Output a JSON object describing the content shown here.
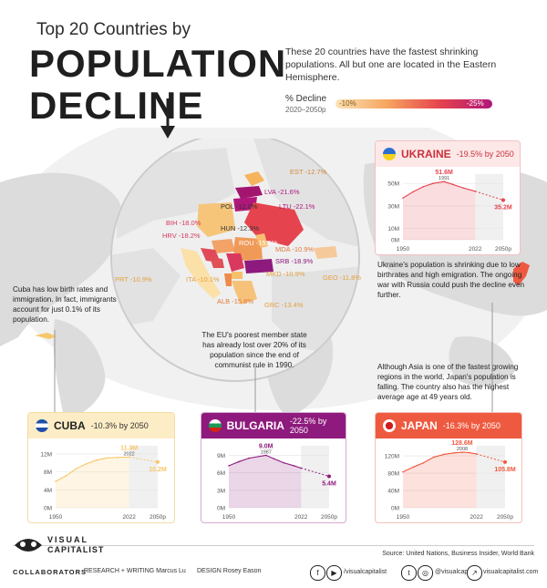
{
  "header": {
    "title_top": "Top 20 Countries by",
    "title_line1": "POPULATION",
    "title_line2": "DECLINE",
    "intro": "These 20 countries have the fastest shrinking populations. All but one are located in the Eastern Hemisphere."
  },
  "legend": {
    "title": "% Decline",
    "period": "2020–2050p",
    "low": "-10%",
    "high": "-25%"
  },
  "colors": {
    "ukraine": "#e5434d",
    "cuba": "#f7c76b",
    "bulgaria": "#8e1a7d",
    "japan": "#ee5a40"
  },
  "map_labels": [
    {
      "name": "EST",
      "value": "-12.7%"
    },
    {
      "name": "LVA",
      "value": "-21.6%"
    },
    {
      "name": "LTU",
      "value": "-22.1%"
    },
    {
      "name": "POL",
      "value": "-12.0%"
    },
    {
      "name": "BIH",
      "value": "-18.0%"
    },
    {
      "name": "HUN",
      "value": "-12.3%"
    },
    {
      "name": "HRV",
      "value": "-18.2%"
    },
    {
      "name": "ROU",
      "value": "-15.5%"
    },
    {
      "name": "MDA",
      "value": "-10.9%"
    },
    {
      "name": "SRB",
      "value": "-18.9%"
    },
    {
      "name": "PRT",
      "value": "-10.9%"
    },
    {
      "name": "ITA",
      "value": "-10.1%"
    },
    {
      "name": "MKD",
      "value": "-10.9%"
    },
    {
      "name": "GEO",
      "value": "-11.8%"
    },
    {
      "name": "ALB",
      "value": "-15.8%"
    },
    {
      "name": "GRC",
      "value": "-13.4%"
    }
  ],
  "annotations": {
    "ukraine": "Ukraine's population is shrinking due to low birthrates and high emigration. The ongoing war with Russia could push the decline even further.",
    "cuba": "Cuba has low birth rates and immigration. In fact, immigrants account for just 0.1% of its population.",
    "bulgaria": "The EU's poorest member state has already lost over 20% of its population since the end of communist rule in 1990.",
    "japan": "Although Asia is one of the fastest growing regions in the world, Japan's population is falling. The country also has the highest average age at 49 years old."
  },
  "chart_data": [
    {
      "type": "area",
      "country": "UKRAINE",
      "subtitle": "-19.5% by 2050",
      "x": [
        1950,
        1960,
        1970,
        1980,
        1991,
        2000,
        2010,
        2022,
        2050
      ],
      "y": [
        37,
        42.5,
        47,
        50,
        51.6,
        49,
        46,
        43,
        35.2
      ],
      "projection_start": 2022,
      "ylim": [
        0,
        55
      ],
      "yticks": [
        "0M",
        "10M",
        "30M",
        "50M"
      ],
      "ytick_values": [
        0,
        10,
        30,
        50
      ],
      "xticks": [
        "1950",
        "2022",
        "2050p"
      ],
      "peak": {
        "value": "51.6M",
        "year": "1991"
      },
      "end": {
        "value": "35.2M"
      }
    },
    {
      "type": "area",
      "country": "CUBA",
      "subtitle": "-10.3% by 2050",
      "x": [
        1950,
        1960,
        1970,
        1980,
        1990,
        2000,
        2010,
        2022,
        2050
      ],
      "y": [
        5.9,
        7.1,
        8.7,
        9.8,
        10.6,
        11.1,
        11.2,
        11.3,
        10.2
      ],
      "projection_start": 2022,
      "ylim": [
        0,
        13
      ],
      "yticks": [
        "0M",
        "4M",
        "8M",
        "12M"
      ],
      "ytick_values": [
        0,
        4,
        8,
        12
      ],
      "xticks": [
        "1950",
        "2022",
        "2050p"
      ],
      "peak": {
        "value": "11.3M",
        "year": "2022"
      },
      "end": {
        "value": "10.2M"
      }
    },
    {
      "type": "area",
      "country": "BULGARIA",
      "subtitle": "-22.5% by 2050",
      "x": [
        1950,
        1960,
        1970,
        1987,
        1995,
        2005,
        2015,
        2022,
        2050
      ],
      "y": [
        7.2,
        7.9,
        8.5,
        9.0,
        8.4,
        7.7,
        7.2,
        6.8,
        5.4
      ],
      "projection_start": 2022,
      "ylim": [
        0,
        10
      ],
      "yticks": [
        "0M",
        "3M",
        "6M",
        "9M"
      ],
      "ytick_values": [
        0,
        3,
        6,
        9
      ],
      "xticks": [
        "1950",
        "2022",
        "2050p"
      ],
      "peak": {
        "value": "9.0M",
        "year": "1987"
      },
      "end": {
        "value": "5.4M"
      }
    },
    {
      "type": "area",
      "country": "JAPAN",
      "subtitle": "-16.3% by 2050",
      "x": [
        1950,
        1960,
        1970,
        1980,
        1990,
        2000,
        2008,
        2015,
        2022,
        2050
      ],
      "y": [
        83,
        94,
        104,
        117,
        123.5,
        127,
        128.6,
        127.5,
        124.5,
        105.8
      ],
      "projection_start": 2022,
      "ylim": [
        0,
        135
      ],
      "yticks": [
        "0M",
        "40M",
        "80M",
        "120M"
      ],
      "ytick_values": [
        0,
        40,
        80,
        120
      ],
      "xticks": [
        "1950",
        "2022",
        "2050p"
      ],
      "peak": {
        "value": "128.6M",
        "year": "2008"
      },
      "end": {
        "value": "105.8M"
      }
    }
  ],
  "footer": {
    "brand_line1": "VISUAL",
    "brand_line2": "CAPITALIST",
    "source": "Source: United Nations, Business Insider, World Bank",
    "collaborators": "COLLABORATORS",
    "research": "RESEARCH + WRITING Marcus Lu",
    "design": "DESIGN Rosey Eason",
    "social1": "/visualcapitalist",
    "social2": "@visualcap",
    "social3": "visualcapitalist.com"
  }
}
